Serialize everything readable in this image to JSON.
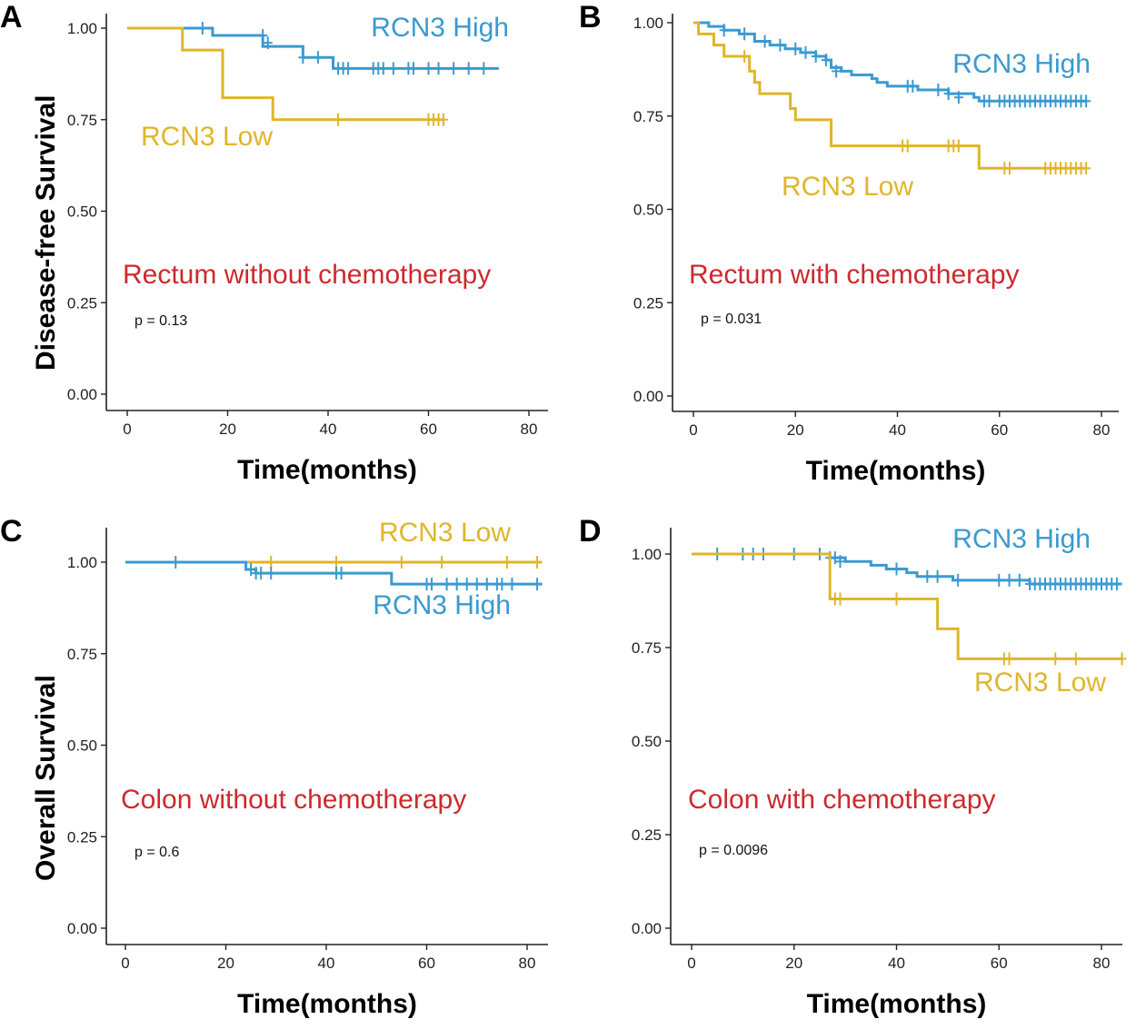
{
  "colors": {
    "high": "#3a9ad0",
    "low": "#e0b52a",
    "subtitle": "#cc2a2e",
    "axis": "#222222"
  },
  "y_axis_titles": {
    "top": "Disease-free Survival",
    "bottom": "Overall Survival"
  },
  "chart_data": [
    {
      "panel": "A",
      "type": "line",
      "subtitle": "Rectum without chemotherapy",
      "p_value": "p = 0.13",
      "xlabel": "Time(months)",
      "ylabel": "Disease-free Survival",
      "xlim": [
        -4,
        84
      ],
      "ylim": [
        -0.05,
        1.05
      ],
      "xticks": [
        "0",
        "20",
        "40",
        "60",
        "80"
      ],
      "yticks": [
        "0.00",
        "0.25",
        "0.50",
        "0.75",
        "1.00"
      ],
      "series": [
        {
          "name": "RCN3 High",
          "color": "#3a9ad0",
          "steps": [
            [
              0,
              1.0
            ],
            [
              17,
              0.98
            ],
            [
              27,
              0.95
            ],
            [
              35,
              0.92
            ],
            [
              41,
              0.89
            ],
            [
              74,
              0.89
            ]
          ],
          "censor": [
            [
              15,
              1.0
            ],
            [
              27,
              0.98
            ],
            [
              28,
              0.96
            ],
            [
              35,
              0.92
            ],
            [
              38,
              0.92
            ],
            [
              42,
              0.89
            ],
            [
              43,
              0.89
            ],
            [
              44,
              0.89
            ],
            [
              49,
              0.89
            ],
            [
              50,
              0.89
            ],
            [
              51,
              0.89
            ],
            [
              53,
              0.89
            ],
            [
              56,
              0.89
            ],
            [
              57,
              0.89
            ],
            [
              60,
              0.89
            ],
            [
              62,
              0.89
            ],
            [
              65,
              0.89
            ],
            [
              68,
              0.89
            ],
            [
              71,
              0.89
            ]
          ]
        },
        {
          "name": "RCN3 Low",
          "color": "#e0b52a",
          "steps": [
            [
              0,
              1.0
            ],
            [
              11,
              0.94
            ],
            [
              19,
              0.81
            ],
            [
              29,
              0.75
            ],
            [
              63,
              0.75
            ]
          ],
          "censor": [
            [
              42,
              0.75
            ],
            [
              60,
              0.75
            ],
            [
              61,
              0.75
            ],
            [
              62,
              0.75
            ],
            [
              63,
              0.75
            ]
          ]
        }
      ]
    },
    {
      "panel": "B",
      "type": "line",
      "subtitle": "Rectum with chemotherapy",
      "p_value": "p = 0.031",
      "xlabel": "Time(months)",
      "ylabel": "",
      "xlim": [
        -4,
        84
      ],
      "ylim": [
        -0.05,
        1.05
      ],
      "xticks": [
        "0",
        "20",
        "40",
        "60",
        "80"
      ],
      "yticks": [
        "0.00",
        "0.25",
        "0.50",
        "0.75",
        "1.00"
      ],
      "series": [
        {
          "name": "RCN3 High",
          "color": "#3a9ad0",
          "steps": [
            [
              0,
              1.0
            ],
            [
              3,
              0.99
            ],
            [
              6,
              0.98
            ],
            [
              9,
              0.97
            ],
            [
              12,
              0.95
            ],
            [
              15,
              0.94
            ],
            [
              18,
              0.93
            ],
            [
              21,
              0.92
            ],
            [
              24,
              0.91
            ],
            [
              26,
              0.9
            ],
            [
              27,
              0.88
            ],
            [
              29,
              0.87
            ],
            [
              31,
              0.86
            ],
            [
              35,
              0.85
            ],
            [
              36,
              0.84
            ],
            [
              38,
              0.83
            ],
            [
              44,
              0.82
            ],
            [
              50,
              0.81
            ],
            [
              55,
              0.8
            ],
            [
              56,
              0.79
            ],
            [
              77,
              0.79
            ]
          ],
          "censor": [
            [
              6,
              0.98
            ],
            [
              10,
              0.97
            ],
            [
              14,
              0.95
            ],
            [
              17,
              0.94
            ],
            [
              20,
              0.93
            ],
            [
              22,
              0.92
            ],
            [
              24,
              0.91
            ],
            [
              26,
              0.9
            ],
            [
              28,
              0.87
            ],
            [
              42,
              0.83
            ],
            [
              43,
              0.83
            ],
            [
              48,
              0.82
            ],
            [
              50,
              0.81
            ],
            [
              52,
              0.8
            ],
            [
              57,
              0.79
            ],
            [
              58,
              0.79
            ],
            [
              60,
              0.79
            ],
            [
              61,
              0.79
            ],
            [
              62,
              0.79
            ],
            [
              63,
              0.79
            ],
            [
              64,
              0.79
            ],
            [
              65,
              0.79
            ],
            [
              66,
              0.79
            ],
            [
              67,
              0.79
            ],
            [
              68,
              0.79
            ],
            [
              69,
              0.79
            ],
            [
              70,
              0.79
            ],
            [
              71,
              0.79
            ],
            [
              72,
              0.79
            ],
            [
              73,
              0.79
            ],
            [
              74,
              0.79
            ],
            [
              75,
              0.79
            ],
            [
              76,
              0.79
            ],
            [
              77,
              0.79
            ]
          ]
        },
        {
          "name": "RCN3 Low",
          "color": "#e0b52a",
          "steps": [
            [
              0,
              1.0
            ],
            [
              1,
              0.97
            ],
            [
              4,
              0.94
            ],
            [
              6,
              0.91
            ],
            [
              11,
              0.87
            ],
            [
              12,
              0.84
            ],
            [
              13,
              0.81
            ],
            [
              19,
              0.77
            ],
            [
              20,
              0.74
            ],
            [
              27,
              0.67
            ],
            [
              56,
              0.61
            ],
            [
              77,
              0.61
            ]
          ],
          "censor": [
            [
              10,
              0.91
            ],
            [
              41,
              0.67
            ],
            [
              42,
              0.67
            ],
            [
              50,
              0.67
            ],
            [
              51,
              0.67
            ],
            [
              52,
              0.67
            ],
            [
              61,
              0.61
            ],
            [
              62,
              0.61
            ],
            [
              69,
              0.61
            ],
            [
              70,
              0.61
            ],
            [
              71,
              0.61
            ],
            [
              72,
              0.61
            ],
            [
              73,
              0.61
            ],
            [
              74,
              0.61
            ],
            [
              75,
              0.61
            ],
            [
              76,
              0.61
            ],
            [
              77,
              0.61
            ]
          ]
        }
      ]
    },
    {
      "panel": "C",
      "type": "line",
      "subtitle": "Colon without chemotherapy",
      "p_value": "p = 0.6",
      "xlabel": "Time(months)",
      "ylabel": "Overall Survival",
      "xlim": [
        -4,
        84
      ],
      "ylim": [
        -0.05,
        1.05
      ],
      "xticks": [
        "0",
        "20",
        "40",
        "60",
        "80"
      ],
      "yticks": [
        "0.00",
        "0.25",
        "0.50",
        "0.75",
        "1.00"
      ],
      "series": [
        {
          "name": "RCN3 Low",
          "color": "#e0b52a",
          "steps": [
            [
              0,
              1.0
            ],
            [
              83,
              1.0
            ]
          ],
          "censor": [
            [
              29,
              1.0
            ],
            [
              42,
              1.0
            ],
            [
              55,
              1.0
            ],
            [
              63,
              1.0
            ],
            [
              76,
              1.0
            ],
            [
              82,
              1.0
            ]
          ]
        },
        {
          "name": "RCN3 High",
          "color": "#3a9ad0",
          "steps": [
            [
              0,
              1.0
            ],
            [
              24,
              0.98
            ],
            [
              26,
              0.97
            ],
            [
              53,
              0.94
            ],
            [
              83,
              0.94
            ]
          ],
          "censor": [
            [
              10,
              1.0
            ],
            [
              25,
              0.98
            ],
            [
              26,
              0.97
            ],
            [
              27,
              0.97
            ],
            [
              29,
              0.97
            ],
            [
              42,
              0.97
            ],
            [
              43,
              0.97
            ],
            [
              60,
              0.94
            ],
            [
              61,
              0.94
            ],
            [
              64,
              0.94
            ],
            [
              66,
              0.94
            ],
            [
              68,
              0.94
            ],
            [
              70,
              0.94
            ],
            [
              72,
              0.94
            ],
            [
              74,
              0.94
            ],
            [
              75,
              0.94
            ],
            [
              77,
              0.94
            ],
            [
              82,
              0.94
            ]
          ]
        }
      ]
    },
    {
      "panel": "D",
      "type": "line",
      "subtitle": "Colon with chemotherapy",
      "p_value": "p = 0.0096",
      "xlabel": "Time(months)",
      "ylabel": "",
      "xlim": [
        -4,
        84
      ],
      "ylim": [
        -0.05,
        1.05
      ],
      "xticks": [
        "0",
        "20",
        "40",
        "60",
        "80"
      ],
      "yticks": [
        "0.00",
        "0.25",
        "0.50",
        "0.75",
        "1.00"
      ],
      "series": [
        {
          "name": "RCN3 High",
          "color": "#3a9ad0",
          "steps": [
            [
              0,
              1.0
            ],
            [
              27,
              0.99
            ],
            [
              30,
              0.98
            ],
            [
              35,
              0.97
            ],
            [
              38,
              0.96
            ],
            [
              42,
              0.95
            ],
            [
              44,
              0.94
            ],
            [
              51,
              0.93
            ],
            [
              66,
              0.92
            ],
            [
              84,
              0.92
            ]
          ],
          "censor": [
            [
              5,
              1.0
            ],
            [
              10,
              1.0
            ],
            [
              12,
              1.0
            ],
            [
              14,
              1.0
            ],
            [
              20,
              1.0
            ],
            [
              25,
              1.0
            ],
            [
              27,
              0.99
            ],
            [
              28,
              0.99
            ],
            [
              29,
              0.98
            ],
            [
              40,
              0.96
            ],
            [
              46,
              0.94
            ],
            [
              48,
              0.94
            ],
            [
              52,
              0.93
            ],
            [
              60,
              0.93
            ],
            [
              62,
              0.93
            ],
            [
              64,
              0.93
            ],
            [
              66,
              0.92
            ],
            [
              67,
              0.92
            ],
            [
              68,
              0.92
            ],
            [
              69,
              0.92
            ],
            [
              70,
              0.92
            ],
            [
              71,
              0.92
            ],
            [
              72,
              0.92
            ],
            [
              73,
              0.92
            ],
            [
              74,
              0.92
            ],
            [
              75,
              0.92
            ],
            [
              76,
              0.92
            ],
            [
              77,
              0.92
            ],
            [
              78,
              0.92
            ],
            [
              79,
              0.92
            ],
            [
              80,
              0.92
            ],
            [
              81,
              0.92
            ],
            [
              82,
              0.92
            ],
            [
              83,
              0.92
            ]
          ]
        },
        {
          "name": "RCN3 Low",
          "color": "#e0b52a",
          "steps": [
            [
              0,
              1.0
            ],
            [
              27,
              0.88
            ],
            [
              48,
              0.8
            ],
            [
              52,
              0.72
            ],
            [
              84,
              0.72
            ]
          ],
          "censor": [
            [
              28,
              0.88
            ],
            [
              29,
              0.88
            ],
            [
              40,
              0.88
            ],
            [
              61,
              0.72
            ],
            [
              62,
              0.72
            ],
            [
              71,
              0.72
            ],
            [
              75,
              0.72
            ],
            [
              84,
              0.72
            ]
          ]
        }
      ]
    }
  ]
}
